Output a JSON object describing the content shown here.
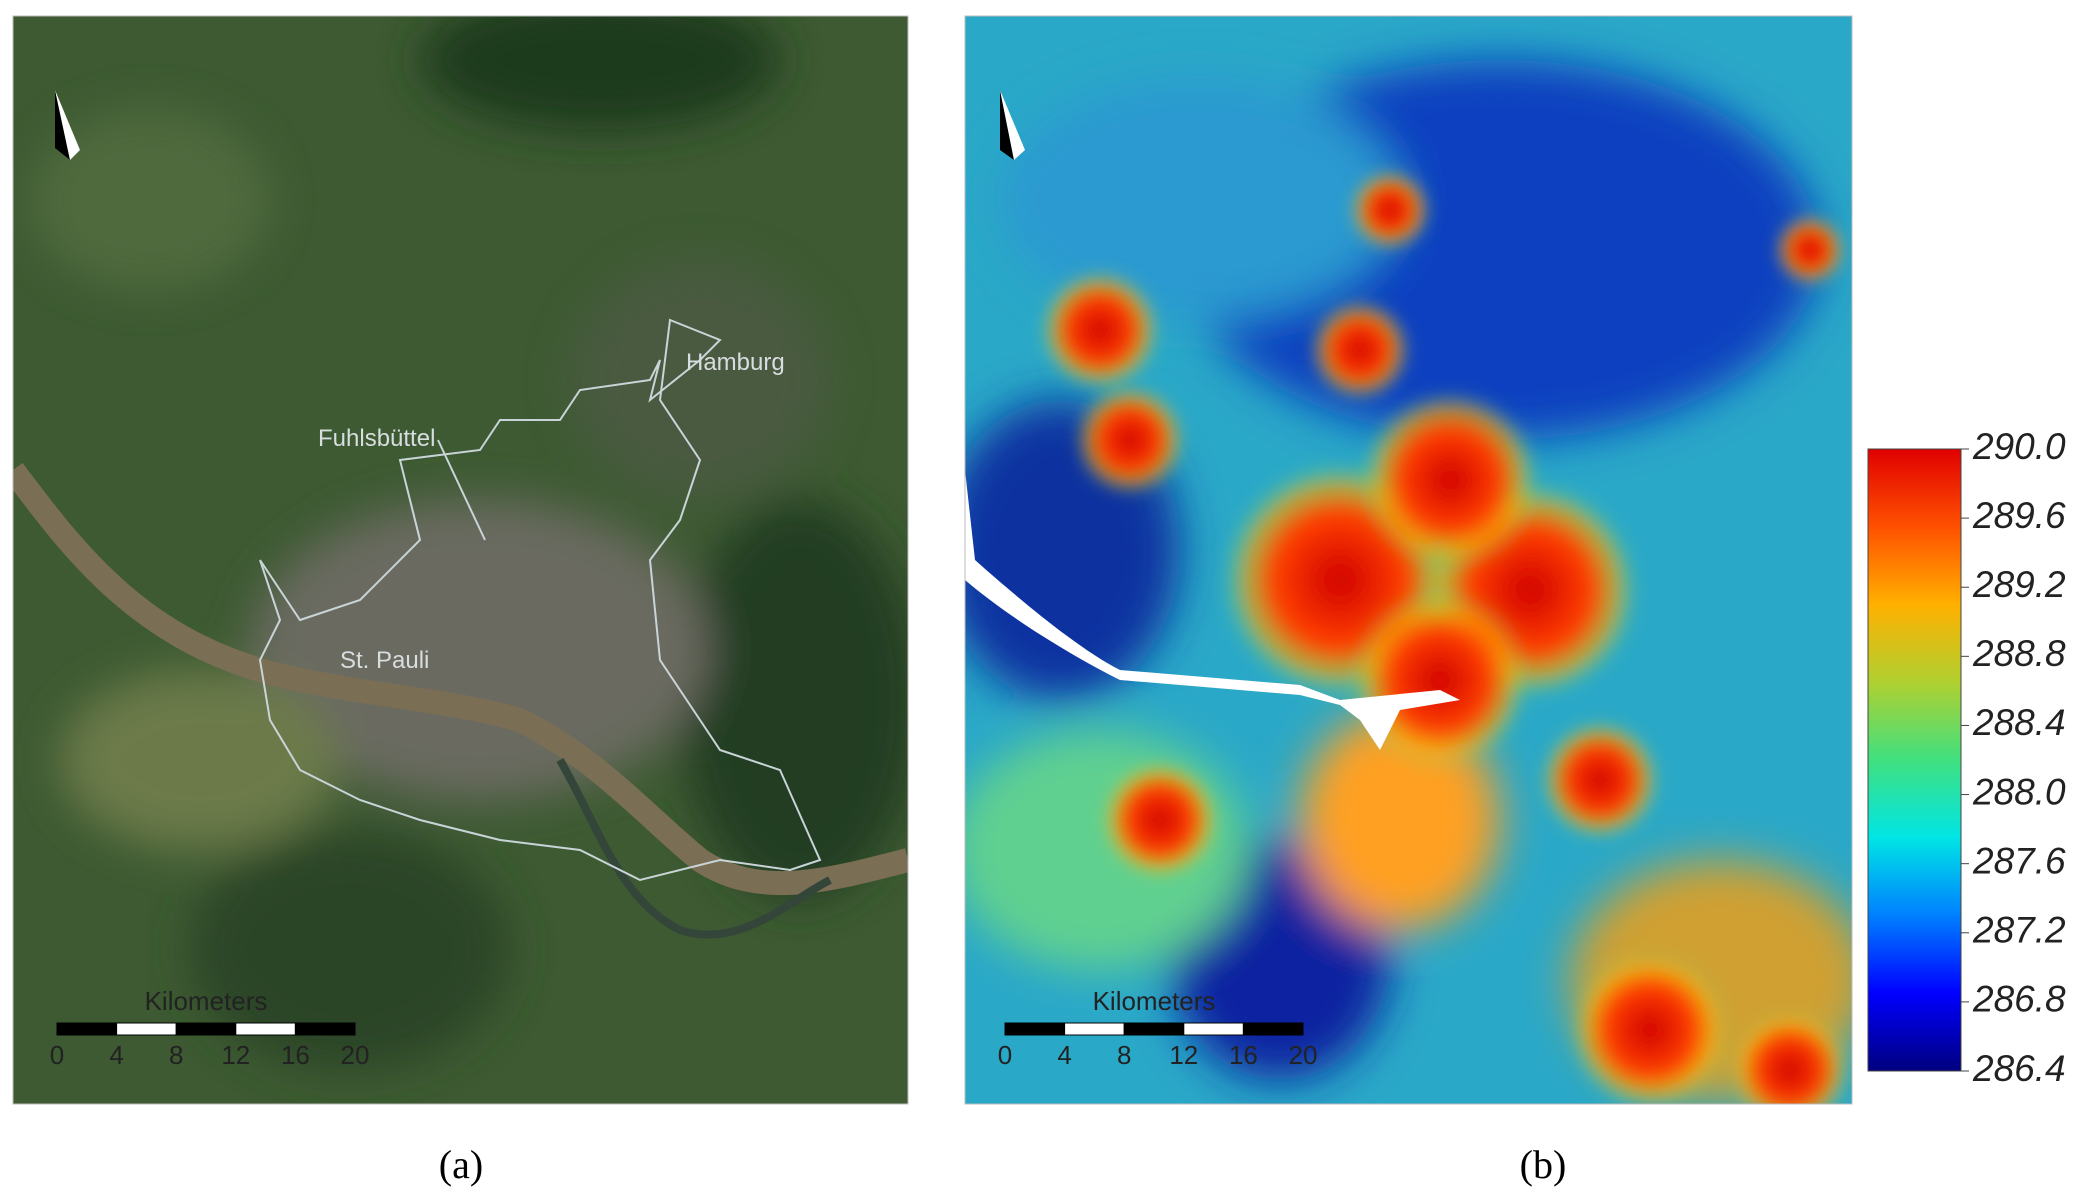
{
  "panels": [
    {
      "caption": "(a)",
      "labels": [
        "Hamburg",
        "Fuhlsbüttel",
        "St. Pauli"
      ],
      "scale_bar": {
        "unit": "Kilometers",
        "lim": [
          0,
          20
        ],
        "ticks": [
          0,
          4,
          8,
          12,
          16,
          20
        ]
      }
    },
    {
      "caption": "(b)",
      "scale_bar": {
        "unit": "Kilometers",
        "lim": [
          0,
          20
        ],
        "ticks": [
          0,
          4,
          8,
          12,
          16,
          20
        ]
      },
      "colorbar": {
        "lim": [
          286.4,
          290.0
        ],
        "colors": [
          "#00007f",
          "#0000ff",
          "#0080ff",
          "#00e5e5",
          "#40e080",
          "#b0d030",
          "#ffb000",
          "#ff5000",
          "#e00000"
        ],
        "ticks": [
          {
            "value": 290.0,
            "label": "290.0"
          },
          289.6,
          289.2,
          288.8,
          288.4,
          {
            "value": 288.0,
            "label": "288.0"
          },
          287.6,
          287.2,
          286.8,
          286.4
        ]
      }
    }
  ]
}
